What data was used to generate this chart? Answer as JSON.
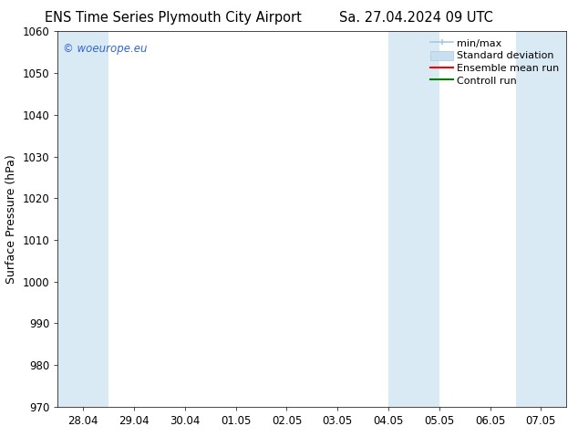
{
  "title_left": "ENS Time Series Plymouth City Airport",
  "title_right": "Sa. 27.04.2024 09 UTC",
  "ylabel": "Surface Pressure (hPa)",
  "ylim": [
    970,
    1060
  ],
  "yticks": [
    970,
    980,
    990,
    1000,
    1010,
    1020,
    1030,
    1040,
    1050,
    1060
  ],
  "xtick_labels": [
    "28.04",
    "29.04",
    "30.04",
    "01.05",
    "02.05",
    "03.05",
    "04.05",
    "05.05",
    "06.05",
    "07.05"
  ],
  "xtick_positions": [
    0,
    1,
    2,
    3,
    4,
    5,
    6,
    7,
    8,
    9
  ],
  "xlim": [
    -0.5,
    9.5
  ],
  "shaded_bands": [
    {
      "x_start": -0.5,
      "x_end": 0.5,
      "color": "#daeaf5"
    },
    {
      "x_start": 6.0,
      "x_end": 7.0,
      "color": "#daeaf5"
    },
    {
      "x_start": 8.5,
      "x_end": 9.5,
      "color": "#daeaf5"
    }
  ],
  "watermark": "© woeurope.eu",
  "watermark_color": "#3366cc",
  "legend_items": [
    {
      "label": "min/max",
      "color": "#a8c8e0",
      "type": "line_with_caps"
    },
    {
      "label": "Standard deviation",
      "color": "#c8dff0",
      "type": "fill"
    },
    {
      "label": "Ensemble mean run",
      "color": "red",
      "type": "line"
    },
    {
      "label": "Controll run",
      "color": "green",
      "type": "line"
    }
  ],
  "background_color": "#ffffff",
  "plot_bg_color": "#ffffff",
  "title_fontsize": 10.5,
  "tick_label_fontsize": 8.5,
  "axis_label_fontsize": 9,
  "legend_fontsize": 8
}
